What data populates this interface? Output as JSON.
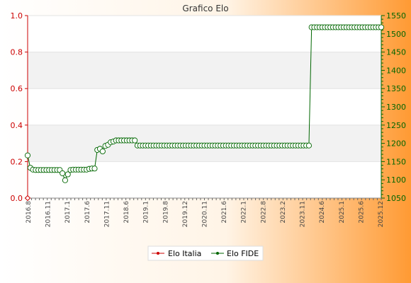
{
  "chart_data": {
    "type": "line",
    "title": "Grafico Elo",
    "left_axis": {
      "ylim": [
        0,
        1.0
      ],
      "ticks": [
        "0.0",
        "0.2",
        "0.4",
        "0.6",
        "0.8",
        "1.0"
      ]
    },
    "right_axis": {
      "ylim": [
        1050,
        1550
      ],
      "ticks": [
        "1050",
        "1100",
        "1150",
        "1200",
        "1250",
        "1300",
        "1350",
        "1400",
        "1450",
        "1500",
        "1550"
      ]
    },
    "x_tick_labels": [
      "2016.8",
      "2016.11",
      "2017.1",
      "2017.6",
      "2017.11",
      "2018.6",
      "2019.1",
      "2019.8",
      "2019.12",
      "2020.11",
      "2021.6",
      "2022.1",
      "2022.8",
      "2023.2",
      "2023.11",
      "2024.6",
      "2025.1",
      "2025.6",
      "2025.12"
    ],
    "legend": {
      "placement": "bottom-center"
    },
    "colors": {
      "elo_italia": "#cc0000",
      "elo_fide": "#006600",
      "grid_band": "#f2f2f2"
    },
    "series": [
      {
        "name": "Elo Italia",
        "axis": "left",
        "values": [
          0
        ]
      },
      {
        "name": "Elo FIDE",
        "axis": "right",
        "values": [
          1167,
          1133,
          1128,
          1127,
          1127,
          1127,
          1127,
          1127,
          1127,
          1127,
          1127,
          1127,
          1127,
          1118,
          1099,
          1115,
          1127,
          1128,
          1128,
          1128,
          1128,
          1128,
          1128,
          1130,
          1131,
          1131,
          1182,
          1185,
          1178,
          1193,
          1196,
          1203,
          1205,
          1208,
          1208,
          1208,
          1208,
          1208,
          1208,
          1208,
          1208,
          1194,
          1194,
          1194,
          1194,
          1194,
          1194,
          1194,
          1194,
          1194,
          1194,
          1194,
          1194,
          1194,
          1194,
          1194,
          1194,
          1194,
          1194,
          1194,
          1194,
          1194,
          1194,
          1194,
          1194,
          1194,
          1194,
          1194,
          1194,
          1194,
          1194,
          1194,
          1194,
          1194,
          1194,
          1194,
          1194,
          1194,
          1194,
          1194,
          1194,
          1194,
          1194,
          1194,
          1194,
          1194,
          1194,
          1194,
          1194,
          1194,
          1194,
          1194,
          1194,
          1194,
          1194,
          1194,
          1194,
          1194,
          1194,
          1194,
          1194,
          1194,
          1194,
          1194,
          1194,
          1194,
          1518,
          1518,
          1518,
          1518,
          1518,
          1518,
          1518,
          1518,
          1518,
          1518,
          1518,
          1518,
          1518,
          1518,
          1518,
          1518,
          1518,
          1518,
          1518,
          1518,
          1518,
          1518,
          1518,
          1518,
          1518,
          1518,
          1518
        ]
      }
    ]
  }
}
